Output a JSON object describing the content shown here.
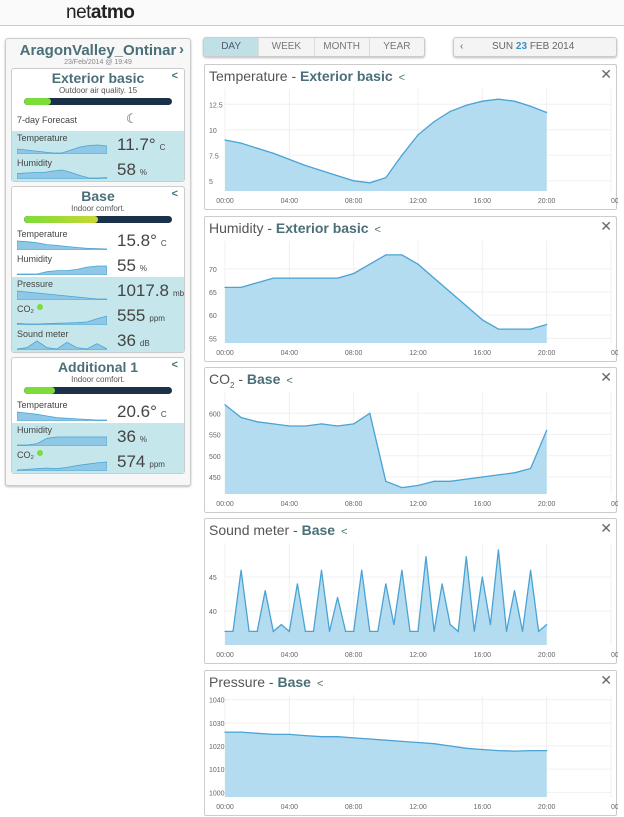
{
  "logo": {
    "light": "net",
    "bold": "atmo"
  },
  "station": {
    "name": "AragonValley_Ontinar",
    "date": "23/Feb/2014 @ 19:49"
  },
  "modules": [
    {
      "name": "Exterior basic",
      "subtitle": "Outdoor air quality. 15",
      "level": 0.18,
      "level_color": "#7cdc3a",
      "forecast_label": "7-day Forecast",
      "forecast_icon": "moon-icon",
      "rows": [
        {
          "label": "Temperature",
          "value": "11.7°",
          "unit": "C",
          "hl": true,
          "spark": [
            9,
            8,
            7,
            6,
            5,
            5,
            8,
            11,
            12.5,
            13,
            12
          ]
        },
        {
          "label": "Humidity",
          "value": "58",
          "unit": "%",
          "hl": true,
          "spark": [
            66,
            67,
            68,
            68,
            71,
            73,
            68,
            62,
            57,
            57,
            58
          ]
        }
      ]
    },
    {
      "name": "Base",
      "subtitle": "Indoor comfort.",
      "level": 0.5,
      "level_color": "#c8d832",
      "rows": [
        {
          "label": "Temperature",
          "value": "15.8°",
          "unit": "C",
          "hl": false,
          "spark": [
            18,
            17.8,
            17.5,
            17,
            16.8,
            16.5,
            16.2,
            16,
            15.9,
            15.8
          ]
        },
        {
          "label": "Humidity",
          "value": "55",
          "unit": "%",
          "hl": false,
          "spark": [
            48,
            48,
            48,
            50,
            51,
            51,
            52,
            54,
            55,
            55
          ]
        },
        {
          "label": "Pressure",
          "value": "1017.8",
          "unit": "mb",
          "hl": true,
          "spark": [
            1026,
            1025,
            1024,
            1023,
            1022,
            1021,
            1020,
            1019,
            1018,
            1018
          ]
        },
        {
          "label": "CO₂",
          "value": "555",
          "unit": "ppm",
          "hl": true,
          "dot": true,
          "spark": [
            450,
            440,
            440,
            445,
            450,
            455,
            460,
            470,
            520,
            560
          ]
        },
        {
          "label": "Sound meter",
          "value": "36",
          "unit": "dB",
          "hl": true,
          "spark": [
            36,
            37,
            42,
            37,
            36,
            41,
            37,
            36,
            40,
            36
          ]
        }
      ]
    },
    {
      "name": "Additional 1",
      "subtitle": "Indoor comfort.",
      "level": 0.21,
      "level_color": "#7cdc3a",
      "rows": [
        {
          "label": "Temperature",
          "value": "20.6°",
          "unit": "C",
          "hl": false,
          "spark": [
            22,
            21.8,
            21.6,
            21.3,
            21,
            20.9,
            20.8,
            20.7,
            20.6,
            20.6
          ]
        },
        {
          "label": "Humidity",
          "value": "36",
          "unit": "%",
          "hl": true,
          "spark": [
            30,
            30,
            31,
            35,
            36,
            36,
            36,
            36,
            36,
            36
          ]
        },
        {
          "label": "CO₂",
          "value": "574",
          "unit": "ppm",
          "hl": true,
          "dot": true,
          "spark": [
            450,
            460,
            470,
            480,
            470,
            490,
            520,
            540,
            560,
            574
          ]
        }
      ]
    }
  ],
  "tabs": [
    "DAY",
    "WEEK",
    "MONTH",
    "YEAR"
  ],
  "active_tab": "DAY",
  "date": {
    "day": "SUN",
    "num": "23",
    "rest": "FEB 2014"
  },
  "chart_data": [
    {
      "type": "area",
      "title": "Temperature",
      "module": "Exterior basic",
      "x": [
        "00:00",
        "01:00",
        "02:00",
        "03:00",
        "04:00",
        "05:00",
        "06:00",
        "07:00",
        "08:00",
        "09:00",
        "10:00",
        "11:00",
        "12:00",
        "13:00",
        "14:00",
        "15:00",
        "16:00",
        "17:00",
        "18:00",
        "19:00",
        "20:00"
      ],
      "xticks": [
        "00:00",
        "04:00",
        "08:00",
        "12:00",
        "16:00",
        "20:00",
        "00:00"
      ],
      "ylim": [
        4,
        14
      ],
      "yticks": [
        5,
        7.5,
        10,
        12.5
      ],
      "values": [
        9,
        8.7,
        8.2,
        7.7,
        7.1,
        6.5,
        6,
        5.5,
        5,
        4.8,
        5.3,
        7.5,
        9.5,
        10.8,
        11.8,
        12.4,
        12.8,
        13,
        12.8,
        12.3,
        11.7
      ]
    },
    {
      "type": "area",
      "title": "Humidity",
      "module": "Exterior basic",
      "x": [
        "00:00",
        "01:00",
        "02:00",
        "03:00",
        "04:00",
        "05:00",
        "06:00",
        "07:00",
        "08:00",
        "09:00",
        "10:00",
        "11:00",
        "12:00",
        "13:00",
        "14:00",
        "15:00",
        "16:00",
        "17:00",
        "18:00",
        "19:00",
        "20:00"
      ],
      "xticks": [
        "00:00",
        "04:00",
        "08:00",
        "12:00",
        "16:00",
        "20:00",
        "00:00"
      ],
      "ylim": [
        54,
        76
      ],
      "yticks": [
        55,
        60,
        65,
        70
      ],
      "values": [
        66,
        66,
        67,
        68,
        68,
        68,
        68,
        68,
        69,
        71,
        73,
        73,
        71,
        68,
        65,
        62,
        59,
        57,
        57,
        57,
        58
      ]
    },
    {
      "type": "area",
      "title": "CO",
      "title_sub": "2",
      "module": "Base",
      "x": [
        "00:00",
        "01:00",
        "02:00",
        "03:00",
        "04:00",
        "05:00",
        "06:00",
        "07:00",
        "08:00",
        "09:00",
        "10:00",
        "11:00",
        "12:00",
        "13:00",
        "14:00",
        "15:00",
        "16:00",
        "17:00",
        "18:00",
        "19:00",
        "20:00"
      ],
      "xticks": [
        "00:00",
        "04:00",
        "08:00",
        "12:00",
        "16:00",
        "20:00",
        "00:00"
      ],
      "ylim": [
        410,
        650
      ],
      "yticks": [
        450,
        500,
        550,
        600
      ],
      "values": [
        620,
        590,
        580,
        575,
        570,
        570,
        575,
        570,
        575,
        600,
        440,
        425,
        430,
        440,
        440,
        445,
        450,
        455,
        460,
        470,
        560
      ]
    },
    {
      "type": "area",
      "title": "Sound meter",
      "module": "Base",
      "x_step_minutes": 30,
      "xticks": [
        "00:00",
        "04:00",
        "08:00",
        "12:00",
        "16:00",
        "20:00",
        "00:00"
      ],
      "ylim": [
        35,
        50
      ],
      "yticks": [
        40,
        45
      ],
      "values": [
        37,
        37,
        46,
        37,
        37,
        43,
        37,
        38,
        37,
        44,
        37,
        37,
        46,
        37,
        42,
        37,
        37,
        46,
        37,
        37,
        44,
        38,
        46,
        37,
        37,
        48,
        37,
        44,
        38,
        37,
        48,
        37,
        45,
        38,
        49,
        37,
        43,
        37,
        46,
        37,
        38
      ]
    },
    {
      "type": "area",
      "title": "Pressure",
      "module": "Base",
      "x": [
        "00:00",
        "01:00",
        "02:00",
        "03:00",
        "04:00",
        "05:00",
        "06:00",
        "07:00",
        "08:00",
        "09:00",
        "10:00",
        "11:00",
        "12:00",
        "13:00",
        "14:00",
        "15:00",
        "16:00",
        "17:00",
        "18:00",
        "19:00",
        "20:00"
      ],
      "xticks": [
        "00:00",
        "04:00",
        "08:00",
        "12:00",
        "16:00",
        "20:00",
        "00:00"
      ],
      "ylim": [
        998,
        1042
      ],
      "yticks": [
        1000,
        1010,
        1020,
        1030,
        1040
      ],
      "values": [
        1026,
        1026,
        1025.5,
        1025,
        1025,
        1024.5,
        1024,
        1024,
        1023.5,
        1023,
        1022.5,
        1022,
        1021.5,
        1021,
        1020,
        1019,
        1018.5,
        1018,
        1017.8,
        1018,
        1018
      ]
    }
  ],
  "colors": {
    "accent": "#4a6f78",
    "fill": "#b3dcf0",
    "line": "#4aa3d4",
    "highlight": "#c5e6ea"
  }
}
